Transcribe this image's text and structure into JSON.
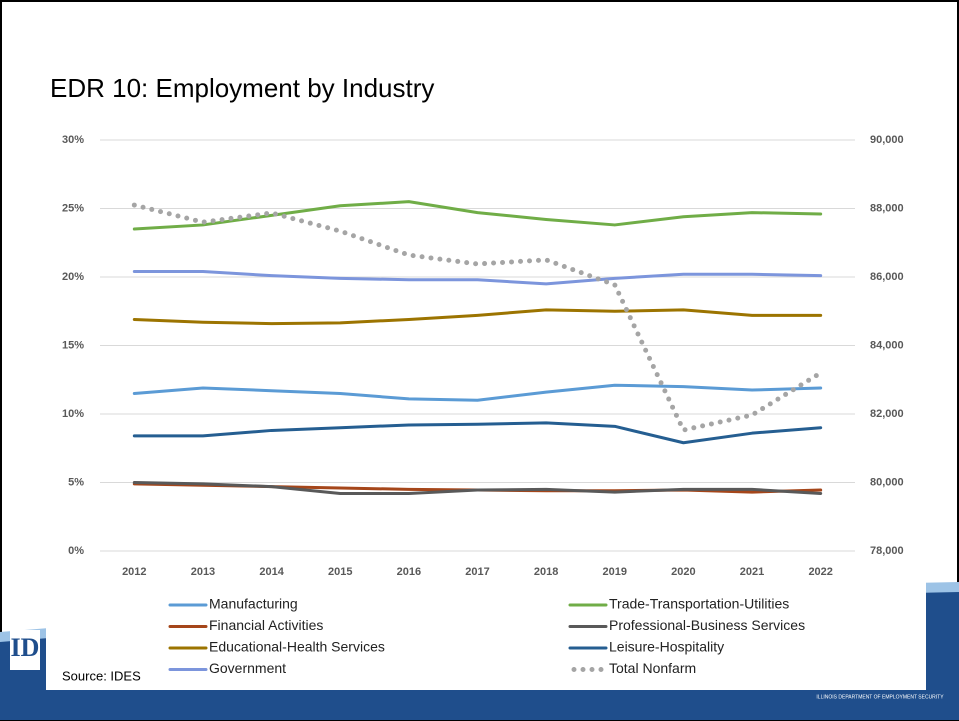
{
  "chart_data": {
    "type": "line",
    "title": "EDR 10: Employment by Industry",
    "source": "Source: IDES",
    "footer": "ILLINOIS DEPARTMENT OF EMPLOYMENT SECURITY",
    "categories": [
      "2012",
      "2013",
      "2014",
      "2015",
      "2016",
      "2017",
      "2018",
      "2019",
      "2020",
      "2021",
      "2022"
    ],
    "ylim": [
      0,
      30
    ],
    "yticks": [
      {
        "value": 0,
        "label": "0%"
      },
      {
        "value": 5,
        "label": "5%"
      },
      {
        "value": 10,
        "label": "10%"
      },
      {
        "value": 15,
        "label": "15%"
      },
      {
        "value": 20,
        "label": "20%"
      },
      {
        "value": 25,
        "label": "25%"
      },
      {
        "value": 30,
        "label": "30%"
      }
    ],
    "y2lim": [
      78000,
      90000
    ],
    "y2ticks": [
      {
        "value": 78000,
        "label": "78,000"
      },
      {
        "value": 80000,
        "label": "80,000"
      },
      {
        "value": 82000,
        "label": "82,000"
      },
      {
        "value": 84000,
        "label": "84,000"
      },
      {
        "value": 86000,
        "label": "86,000"
      },
      {
        "value": 88000,
        "label": "88,000"
      },
      {
        "value": 90000,
        "label": "90,000"
      }
    ],
    "grid": true,
    "legend": "bottom",
    "series": [
      {
        "name": "Manufacturing",
        "color": "#5b9bd5",
        "values": [
          11.5,
          11.9,
          11.7,
          11.5,
          11.1,
          11.0,
          11.6,
          12.1,
          12.0,
          11.75,
          11.9
        ]
      },
      {
        "name": "Trade-Transportation-Utilities",
        "color": "#70ad47",
        "values": [
          23.5,
          23.8,
          24.5,
          25.2,
          25.5,
          24.7,
          24.2,
          23.8,
          24.4,
          24.7,
          24.6
        ]
      },
      {
        "name": "Financial Activities",
        "color": "#a5461a",
        "values": [
          4.9,
          4.8,
          4.7,
          4.6,
          4.5,
          4.45,
          4.4,
          4.4,
          4.45,
          4.3,
          4.45
        ]
      },
      {
        "name": "Professional-Business Services",
        "color": "#595959",
        "values": [
          5.0,
          4.9,
          4.7,
          4.2,
          4.2,
          4.45,
          4.5,
          4.3,
          4.5,
          4.5,
          4.2
        ]
      },
      {
        "name": "Educational-Health Services",
        "color": "#9c7400",
        "values": [
          16.9,
          16.7,
          16.6,
          16.65,
          16.9,
          17.2,
          17.6,
          17.5,
          17.6,
          17.2,
          17.2
        ]
      },
      {
        "name": "Leisure-Hospitality",
        "color": "#255e91",
        "values": [
          8.4,
          8.4,
          8.8,
          9.0,
          9.2,
          9.25,
          9.35,
          9.1,
          7.9,
          8.6,
          9.0
        ]
      },
      {
        "name": "Government",
        "color": "#7c95dc",
        "values": [
          20.4,
          20.4,
          20.1,
          19.9,
          19.8,
          19.8,
          19.5,
          19.9,
          20.2,
          20.2,
          20.1
        ]
      },
      {
        "name": "Total Nonfarm",
        "color": "#a5a5a5",
        "axis": "y2",
        "dotted": true,
        "values": [
          88100,
          87600,
          87870,
          87340,
          86640,
          86380,
          86500,
          85770,
          81530,
          81970,
          83200
        ]
      }
    ]
  }
}
